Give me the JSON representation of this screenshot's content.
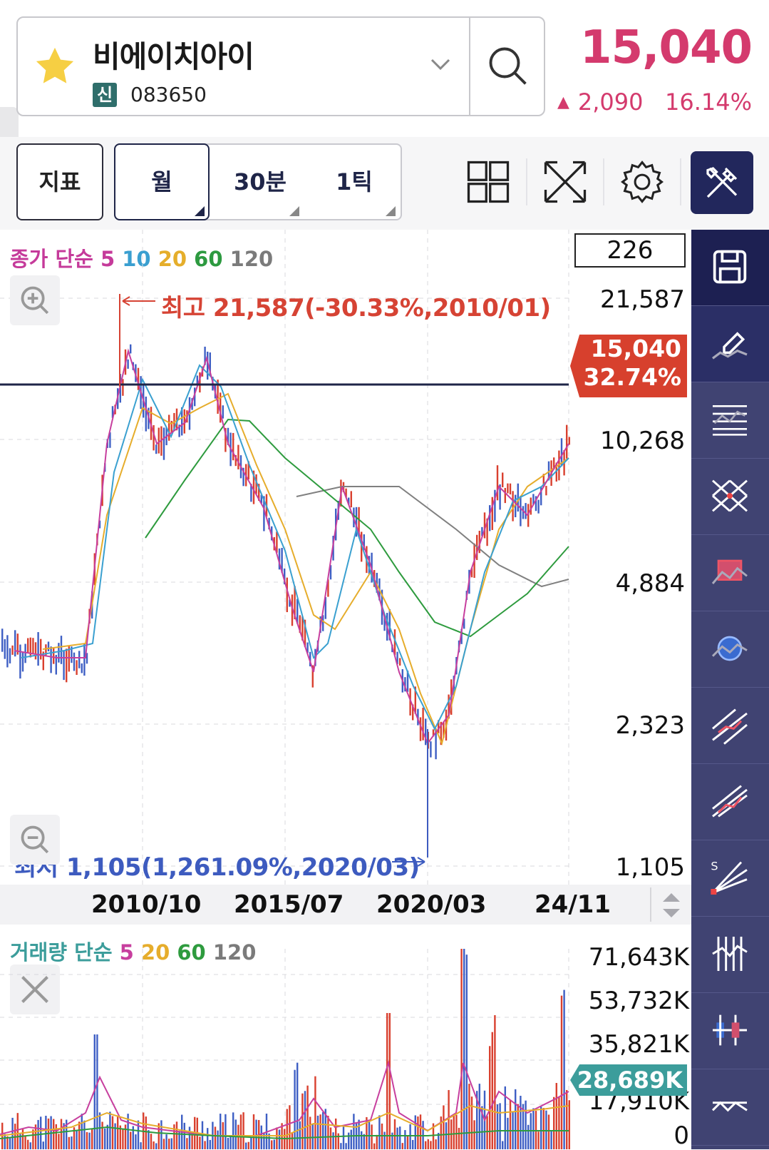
{
  "header": {
    "stock_name": "비에이치아이",
    "badge": "신",
    "code": "083650",
    "price": "15,040",
    "change": "2,090",
    "change_pct": "16.14%",
    "up_color": "#d43a6d"
  },
  "toolbar": {
    "indicator": "지표",
    "periods": [
      "월",
      "30분",
      "1틱"
    ],
    "selected_period": "월"
  },
  "chart": {
    "ma_legend": {
      "prefix": "종가 단순",
      "p5": "5",
      "p10": "10",
      "p20": "20",
      "p60": "60",
      "p120": "120"
    },
    "count": "226",
    "high_label": "최고 21,587(-30.33%,2010/01)",
    "low_label": "최저 1,105(1,261.09%,2020/03)",
    "price_axis": [
      "21,587",
      "10,268",
      "4,884",
      "2,323",
      "1,105"
    ],
    "current_price": "15,040",
    "current_pct": "32.74%",
    "dates": [
      "2010/10",
      "2015/07",
      "2020/03",
      "24/11"
    ]
  },
  "volume": {
    "legend": {
      "prefix": "거래량 단순",
      "p5": "5",
      "p20": "20",
      "p60": "60",
      "p120": "120"
    },
    "axis": [
      "71,643K",
      "53,732K",
      "35,821K",
      "17,910K",
      "0"
    ],
    "current": "28,689K"
  },
  "rail": [
    "save-icon",
    "eraser-icon",
    "fibonacci-icon",
    "cross-lines-icon",
    "rectangle-icon",
    "circle-icon",
    "trend-channel-icon",
    "pitchfork-icon",
    "speed-line-icon",
    "vertical-lines-icon",
    "candle-icon",
    "zigzag-icon"
  ]
}
